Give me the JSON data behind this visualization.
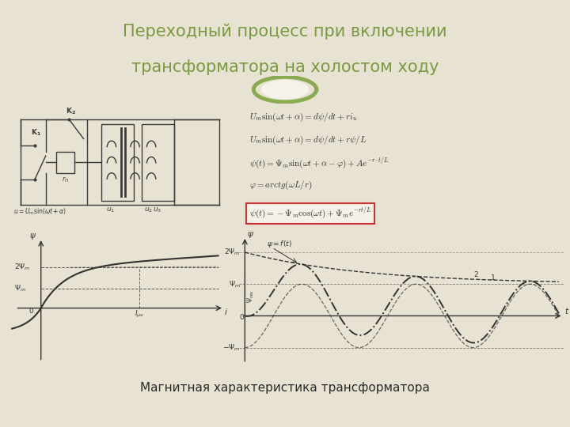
{
  "title_line1": "Переходный процесс при включении",
  "title_line2": "трансформатора на холостом ходу",
  "subtitle": "Магнитная характеристика трансформатора",
  "bg_color": "#e8e2d2",
  "title_bg": "#f5f2ea",
  "panel_bg": "#ede8dc",
  "title_color": "#7a9a40",
  "subtitle_color": "#2a2a2a",
  "green_bar_color": "#8aab50",
  "sep_color": "#b8b09a",
  "text_color": "#333333",
  "eq1": "$U_m\\sin(\\omega t+\\alpha)=d\\psi/dt+ri_u$",
  "eq2": "$U_m\\sin(\\omega t+\\alpha)=d\\psi/dt+r\\psi/L$",
  "eq3": "$\\psi(t)=\\Psi_m\\sin(\\omega t+\\alpha-\\varphi)+Ae^{-r\\cdot t/L}$",
  "eq4": "$\\varphi=arctg(\\omega L/r)$",
  "eq5": "$\\psi(t)=-\\Psi_m\\cos(\\omega t)+\\Psi_m e^{-rt/L}$",
  "box_color": "#cc3333"
}
